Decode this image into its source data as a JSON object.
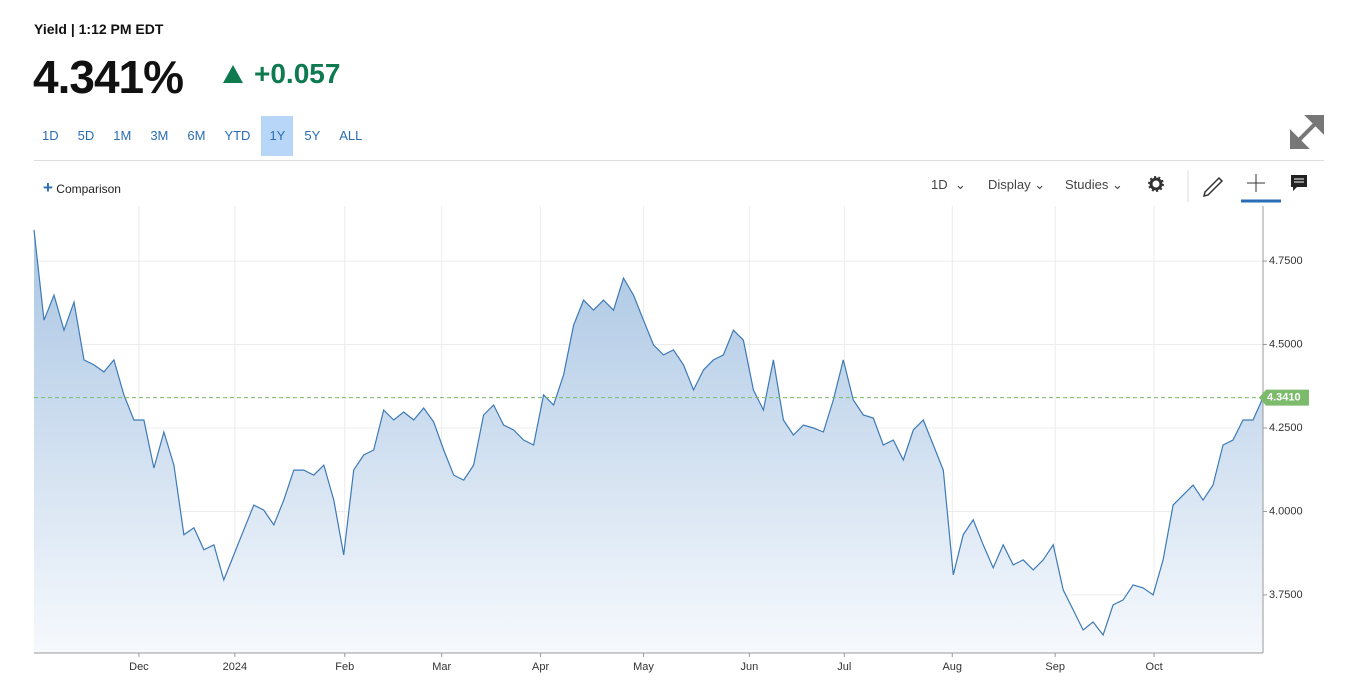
{
  "header": {
    "title": "Yield | 1:12 PM EDT",
    "price": "4.341%",
    "change": "+0.057"
  },
  "ranges": {
    "items": [
      "1D",
      "5D",
      "1M",
      "3M",
      "6M",
      "YTD",
      "1Y",
      "5Y",
      "ALL"
    ],
    "active": "1Y"
  },
  "toolbar": {
    "comparison": "Comparison",
    "interval": "1D",
    "display": "Display",
    "studies": "Studies"
  },
  "chart_data": {
    "type": "line",
    "series": [
      {
        "name": "Yield",
        "color": "#3d7ab5",
        "values": [
          4.843,
          4.573,
          4.648,
          4.543,
          4.627,
          4.454,
          4.439,
          4.418,
          4.454,
          4.349,
          4.274,
          4.274,
          4.13,
          4.238,
          4.139,
          3.93,
          3.951,
          3.885,
          3.9,
          3.795,
          3.87,
          3.945,
          4.019,
          4.004,
          3.96,
          4.034,
          4.124,
          4.124,
          4.109,
          4.139,
          4.034,
          3.87,
          4.124,
          4.169,
          4.184,
          4.304,
          4.274,
          4.298,
          4.274,
          4.31,
          4.268,
          4.184,
          4.109,
          4.094,
          4.139,
          4.289,
          4.319,
          4.259,
          4.244,
          4.214,
          4.199,
          4.349,
          4.319,
          4.409,
          4.558,
          4.633,
          4.603,
          4.633,
          4.603,
          4.699,
          4.648,
          4.573,
          4.499,
          4.469,
          4.484,
          4.439,
          4.364,
          4.424,
          4.454,
          4.469,
          4.543,
          4.513,
          4.364,
          4.304,
          4.454,
          4.274,
          4.229,
          4.259,
          4.25,
          4.238,
          4.334,
          4.454,
          4.334,
          4.289,
          4.28,
          4.199,
          4.214,
          4.154,
          4.244,
          4.274,
          4.199,
          4.124,
          3.81,
          3.93,
          3.975,
          3.9,
          3.831,
          3.9,
          3.84,
          3.855,
          3.825,
          3.855,
          3.9,
          3.765,
          3.705,
          3.645,
          3.669,
          3.63,
          3.72,
          3.735,
          3.78,
          3.771,
          3.75,
          3.855,
          4.019,
          4.049,
          4.079,
          4.034,
          4.079,
          4.199,
          4.214,
          4.274,
          4.274,
          4.341
        ]
      }
    ],
    "xlim": [
      0,
      123
    ],
    "xticks": [
      {
        "value": 10.5,
        "label": "Dec"
      },
      {
        "value": 20.1,
        "label": "2024"
      },
      {
        "value": 31.1,
        "label": "Feb"
      },
      {
        "value": 40.8,
        "label": "Mar"
      },
      {
        "value": 50.7,
        "label": "Apr"
      },
      {
        "value": 61.0,
        "label": "May"
      },
      {
        "value": 71.6,
        "label": "Jun"
      },
      {
        "value": 81.1,
        "label": "Jul"
      },
      {
        "value": 91.9,
        "label": "Aug"
      },
      {
        "value": 102.2,
        "label": "Sep"
      },
      {
        "value": 112.1,
        "label": "Oct"
      }
    ],
    "ylim": [
      3.576,
      4.915
    ],
    "yticks": [
      {
        "value": 3.75,
        "label": "3.7500"
      },
      {
        "value": 4.0,
        "label": "4.0000"
      },
      {
        "value": 4.25,
        "label": "4.2500"
      },
      {
        "value": 4.5,
        "label": "4.5000"
      },
      {
        "value": 4.75,
        "label": "4.7500"
      }
    ],
    "last_value": {
      "value": 4.341,
      "label": "4.3410",
      "color": "#7cba6c"
    },
    "grid": true
  }
}
